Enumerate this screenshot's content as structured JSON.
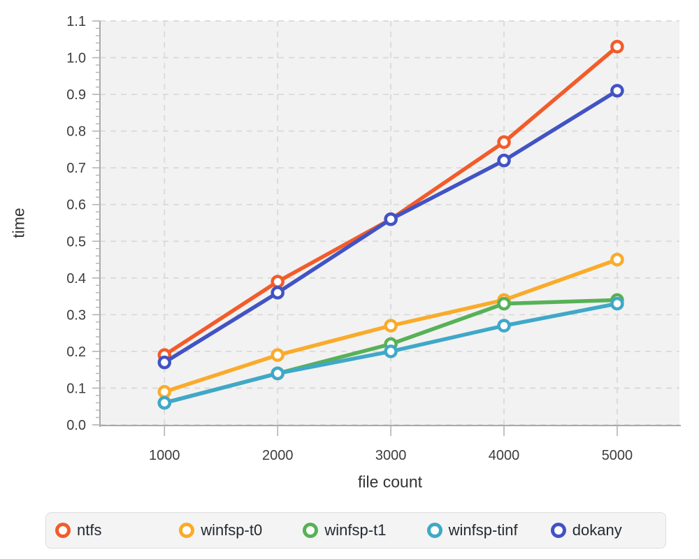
{
  "chart_data": {
    "type": "line",
    "title": "",
    "xlabel": "file count",
    "ylabel": "time",
    "x": [
      1000,
      2000,
      3000,
      4000,
      5000
    ],
    "xticks": [
      1000,
      2000,
      3000,
      4000,
      5000
    ],
    "yticks": [
      0.0,
      0.1,
      0.2,
      0.3,
      0.4,
      0.5,
      0.6,
      0.7,
      0.8,
      0.9,
      1.0,
      1.1
    ],
    "y_minor_step": 0.02,
    "xlim": [
      430,
      5550
    ],
    "ylim": [
      0.0,
      1.1
    ],
    "grid": "dashed",
    "legend_position": "bottom",
    "series": [
      {
        "name": "ntfs",
        "color": "#f25c2a",
        "values": [
          0.19,
          0.39,
          0.56,
          0.77,
          1.03
        ]
      },
      {
        "name": "winfsp-t0",
        "color": "#faab2a",
        "values": [
          0.09,
          0.19,
          0.27,
          0.34,
          0.45
        ]
      },
      {
        "name": "winfsp-t1",
        "color": "#57b157",
        "values": [
          0.06,
          0.14,
          0.22,
          0.33,
          0.34
        ]
      },
      {
        "name": "winfsp-tinf",
        "color": "#3fa8c8",
        "values": [
          0.06,
          0.14,
          0.2,
          0.27,
          0.33
        ]
      },
      {
        "name": "dokany",
        "color": "#4253c4",
        "values": [
          0.17,
          0.36,
          0.56,
          0.72,
          0.91
        ]
      }
    ],
    "style": {
      "plot_bg": "#f2f2f2",
      "grid_color": "#d9d9d9",
      "axis_color": "#a9a9a9",
      "tick_color": "#b3b3b3",
      "tick_label_color": "#3d3d3d",
      "axis_label_color": "#333333",
      "legend_bg": "#f4f4f4",
      "legend_border": "#dddddd",
      "legend_text": "#242a33",
      "marker_fill": "#ffffff"
    }
  }
}
